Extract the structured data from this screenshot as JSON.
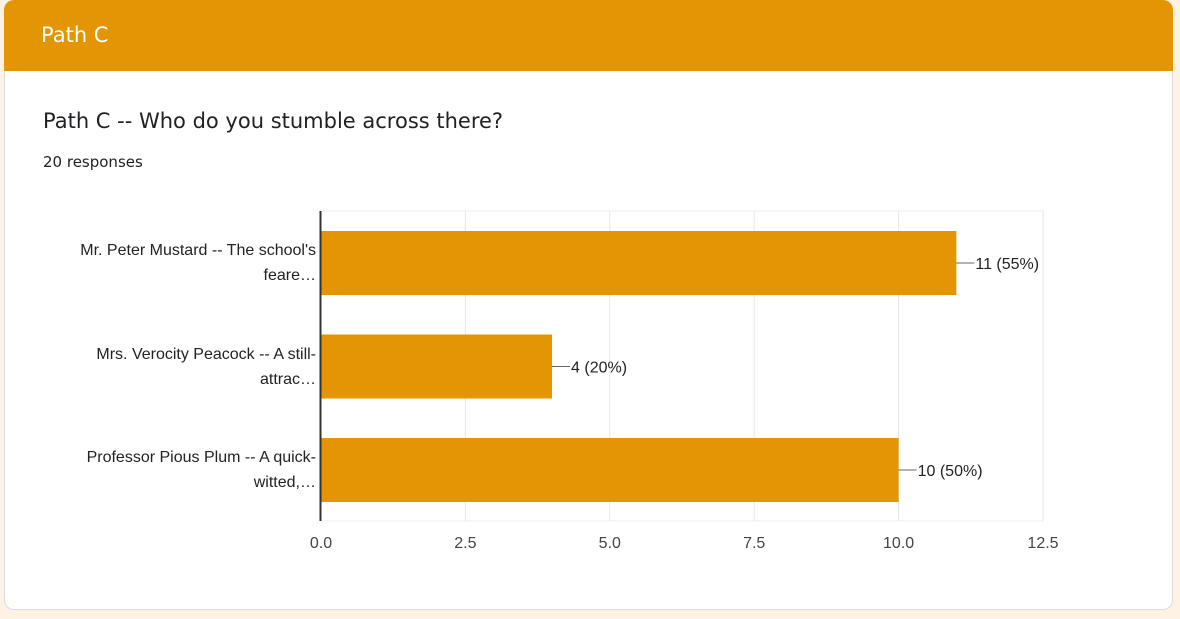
{
  "section": {
    "title": "Path C"
  },
  "question": {
    "title": "Path C -- Who do you stumble across there?",
    "responses": "20 responses"
  },
  "colors": {
    "accent": "#e39503",
    "bar": "#e39503",
    "page_background": "#fdf2e4"
  },
  "chart_data": {
    "type": "bar",
    "orientation": "horizontal",
    "categories": [
      [
        "Mr. Peter Mustard -- The school's",
        "feare…"
      ],
      [
        "Mrs. Verocity Peacock -- A still-",
        "attrac…"
      ],
      [
        "Professor Pious Plum -- A quick-",
        "witted,…"
      ]
    ],
    "values": [
      11,
      4,
      10
    ],
    "data_labels": [
      "11 (55%)",
      "4 (20%)",
      "10 (50%)"
    ],
    "xlim": [
      0,
      12.5
    ],
    "xticks": [
      "0.0",
      "2.5",
      "5.0",
      "7.5",
      "10.0",
      "12.5"
    ],
    "grid": true,
    "legend": "none"
  }
}
